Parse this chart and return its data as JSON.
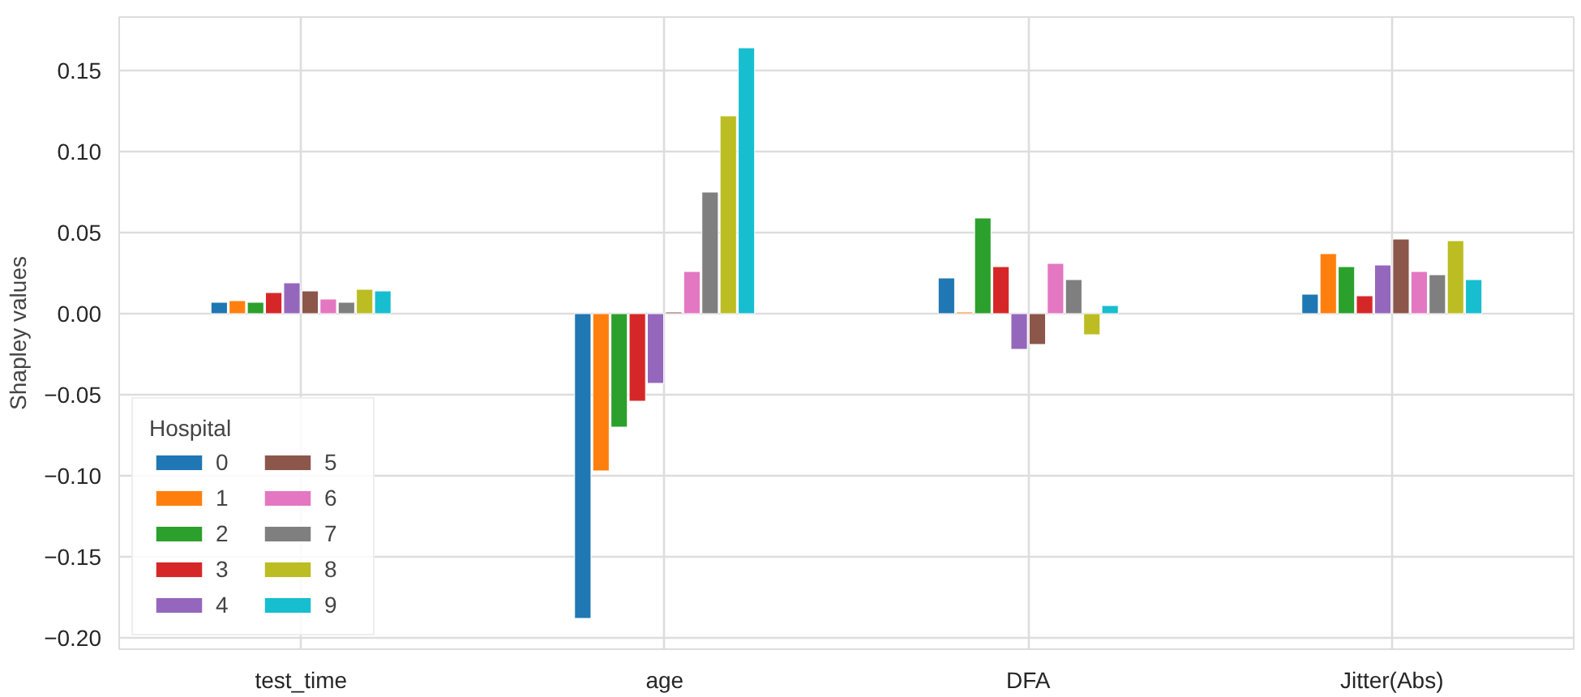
{
  "chart_data": {
    "type": "bar",
    "ylabel": "Shapley values",
    "legend_title": "Hospital",
    "categories": [
      "test_time",
      "age",
      "DFA",
      "Jitter(Abs)"
    ],
    "ylim": [
      -0.207,
      0.183
    ],
    "yticks": [
      {
        "value": -0.2,
        "label": "−0.20"
      },
      {
        "value": -0.15,
        "label": "−0.15"
      },
      {
        "value": -0.1,
        "label": "−0.10"
      },
      {
        "value": -0.05,
        "label": "−0.05"
      },
      {
        "value": 0,
        "label": "0.00"
      },
      {
        "value": 0.05,
        "label": "0.05"
      },
      {
        "value": 0.1,
        "label": "0.10"
      },
      {
        "value": 0.15,
        "label": "0.15"
      }
    ],
    "grid": true,
    "legend": "bottom left",
    "series": [
      {
        "name": "0",
        "color": "#1f77b4",
        "values": [
          0.007,
          -0.188,
          0.022,
          0.012
        ]
      },
      {
        "name": "1",
        "color": "#ff7f0e",
        "values": [
          0.008,
          -0.097,
          0.001,
          0.037
        ]
      },
      {
        "name": "2",
        "color": "#2ca02c",
        "values": [
          0.007,
          -0.07,
          0.059,
          0.029
        ]
      },
      {
        "name": "3",
        "color": "#d62728",
        "values": [
          0.013,
          -0.054,
          0.029,
          0.011
        ]
      },
      {
        "name": "4",
        "color": "#9467bd",
        "values": [
          0.019,
          -0.043,
          -0.022,
          0.03
        ]
      },
      {
        "name": "5",
        "color": "#8c564b",
        "values": [
          0.014,
          0.001,
          -0.019,
          0.046
        ]
      },
      {
        "name": "6",
        "color": "#e377c2",
        "values": [
          0.009,
          0.026,
          0.031,
          0.026
        ]
      },
      {
        "name": "7",
        "color": "#7f7f7f",
        "values": [
          0.007,
          0.075,
          0.021,
          0.024
        ]
      },
      {
        "name": "8",
        "color": "#bcbd22",
        "values": [
          0.015,
          0.122,
          -0.013,
          0.045
        ]
      },
      {
        "name": "9",
        "color": "#17becf",
        "values": [
          0.014,
          0.164,
          0.005,
          0.021
        ]
      }
    ]
  }
}
